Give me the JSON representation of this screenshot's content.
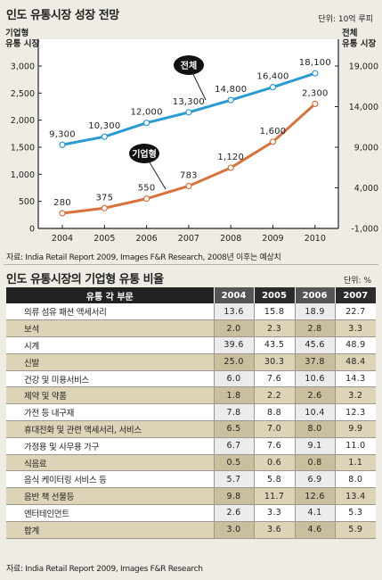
{
  "header": {
    "title": "인도 유통시장 성장 전망",
    "unit": "단위: 10억 루피"
  },
  "chart_data": {
    "type": "line",
    "x": [
      "2004",
      "2005",
      "2006",
      "2007",
      "2008",
      "2009",
      "2010"
    ],
    "left_axis_label": [
      "기업형",
      "유통 시장"
    ],
    "right_axis_label": [
      "전체",
      "유통 시장"
    ],
    "left_ticks": [
      "3,000",
      "2,500",
      "2,000",
      "1,500",
      "1,000",
      "500",
      "0"
    ],
    "right_ticks": [
      "19,000",
      "14,000",
      "9,000",
      "4,000",
      "-1,000"
    ],
    "ylim_left": [
      0,
      3000
    ],
    "ylim_right": [
      -1000,
      19000
    ],
    "series": [
      {
        "name": "전체",
        "axis": "right",
        "color": "#2b9ad4",
        "values": [
          9300,
          10300,
          12000,
          13300,
          14800,
          16400,
          18100
        ],
        "labels": [
          "9,300",
          "10,300",
          "12,000",
          "13,300",
          "14,800",
          "16,400",
          "18,100"
        ]
      },
      {
        "name": "기업형",
        "axis": "left",
        "color": "#d8713a",
        "values": [
          280,
          375,
          550,
          783,
          1120,
          1600,
          2300
        ],
        "labels": [
          "280",
          "375",
          "550",
          "783",
          "1,120",
          "1,600",
          "2,300"
        ]
      }
    ],
    "grid": false
  },
  "source1": "자료: India Retail Report 2009, Images F&R Research,  2008년 이후는 예상치",
  "table": {
    "title": "인도 유통시장의 기업형 유통 비율",
    "unit": "단위: %",
    "columns": [
      "유통 각 부문",
      "2004",
      "2005",
      "2006",
      "2007"
    ],
    "rows": [
      [
        "의류 섬유 패션 액세서리",
        "13.6",
        "15.8",
        "18.9",
        "22.7"
      ],
      [
        "보석",
        "2.0",
        "2.3",
        "2.8",
        "3.3"
      ],
      [
        "시계",
        "39.6",
        "43.5",
        "45.6",
        "48.9"
      ],
      [
        "신발",
        "25.0",
        "30.3",
        "37.8",
        "48.4"
      ],
      [
        "건강 및 미용서비스",
        "6.0",
        "7.6",
        "10.6",
        "14.3"
      ],
      [
        "제약 및 약품",
        "1.8",
        "2.2",
        "2.6",
        "3.2"
      ],
      [
        "가전 등 내구재",
        "7.8",
        "8.8",
        "10.4",
        "12.3"
      ],
      [
        "휴대전화 및 관련 액세서리, 서비스",
        "6.5",
        "7.0",
        "8.0",
        "9.9"
      ],
      [
        "가정용 및 사무용 가구",
        "6.7",
        "7.6",
        "9.1",
        "11.0"
      ],
      [
        "식음료",
        "0.5",
        "0.6",
        "0.8",
        "1.1"
      ],
      [
        "음식 케이터링 서비스 등",
        "5.7",
        "5.8",
        "6.9",
        "8.0"
      ],
      [
        "음반 책 선물등",
        "9.8",
        "11.7",
        "12.6",
        "13.4"
      ],
      [
        "엔터테인먼트",
        "2.6",
        "3.3",
        "4.1",
        "5.3"
      ],
      [
        "합계",
        "3.0",
        "3.6",
        "4.6",
        "5.9"
      ]
    ]
  },
  "source2": "자료: India Retail Report 2009,  Images F&R Research"
}
